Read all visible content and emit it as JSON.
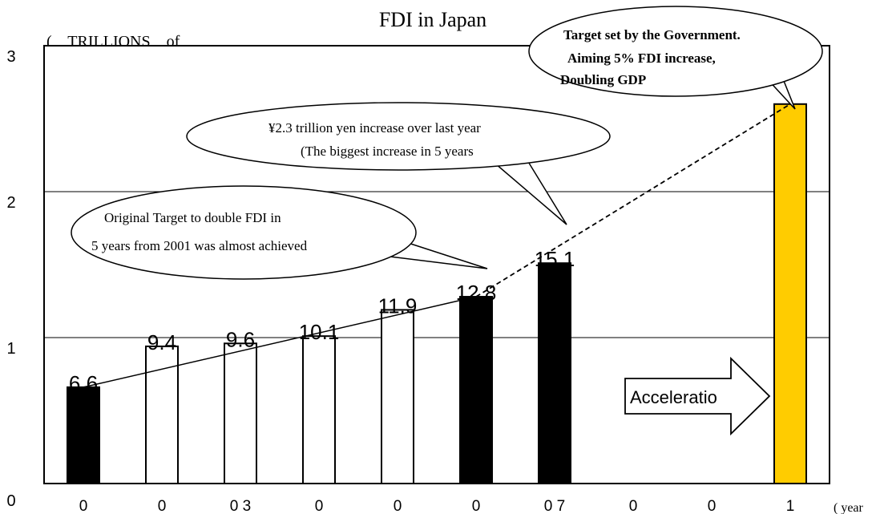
{
  "chart_data": {
    "type": "bar",
    "title": "FDI in Japan",
    "ylabel": "(    TRILLIONS    of",
    "xlabel": "( year",
    "ylim": [
      0,
      30
    ],
    "yticks": [
      "0",
      "1",
      "2",
      "3"
    ],
    "grid": true,
    "x_tick_labels": [
      "0",
      "0",
      "0 3",
      "0",
      "0",
      "0",
      "0 7",
      "0",
      "0",
      "1"
    ],
    "values": [
      6.6,
      9.4,
      9.6,
      10.1,
      11.9,
      12.8,
      15.1,
      null,
      null,
      26
    ],
    "value_labels": [
      "6.6",
      "9.4",
      "9.6",
      "10.1",
      "11.9",
      "12.8",
      "15.1",
      "",
      "",
      ""
    ],
    "bar_styles": [
      "black",
      "white",
      "white",
      "white",
      "white",
      "black",
      "black",
      "none",
      "none",
      "gold"
    ],
    "colors": {
      "black": "#000000",
      "white": "#ffffff",
      "gold": "#ffcc00",
      "grid": "#000000"
    },
    "trend_solid": {
      "from": [
        0,
        6.6
      ],
      "to": [
        5,
        12.8
      ]
    },
    "trend_dashed": {
      "from": [
        5,
        12.8
      ],
      "to": [
        9,
        26
      ]
    },
    "callouts": {
      "government": [
        "Target set by the Government.",
        "Aiming 5% FDI increase,",
        "Doubling GDP"
      ],
      "increase": [
        "¥2.3 trillion yen increase over last year",
        "(The biggest increase in 5 years"
      ],
      "original": [
        "Original Target to double FDI in",
        "5 years from 2001 was almost achieved"
      ]
    },
    "arrow_label": "Acceleratio"
  }
}
